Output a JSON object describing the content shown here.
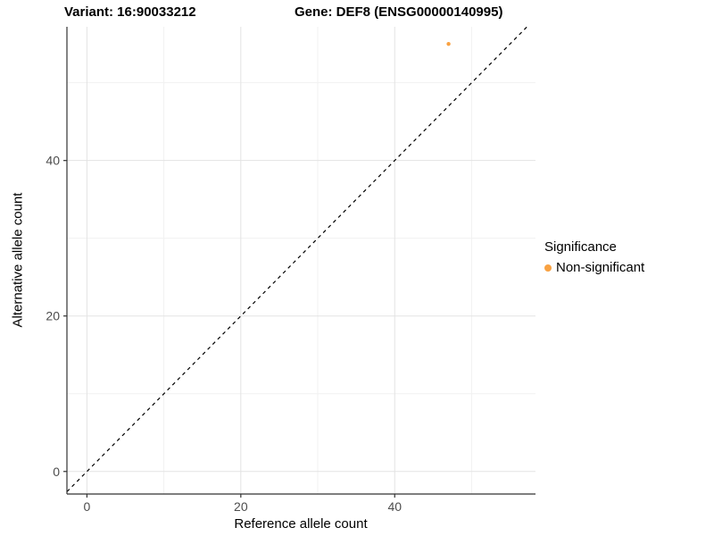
{
  "header": {
    "variant_title": "Variant: 16:90033212",
    "gene_title": "Gene: DEF8 (ENSG00000140995)"
  },
  "chart_data": {
    "type": "scatter",
    "xlabel": "Reference allele count",
    "ylabel": "Alternative allele count",
    "x_ticks": [
      0,
      20,
      40
    ],
    "y_ticks": [
      0,
      20,
      40
    ],
    "x_minor_ticks": [
      10,
      30,
      50
    ],
    "y_minor_ticks": [
      10,
      30,
      50
    ],
    "xlim": [
      -2.6,
      58.3
    ],
    "ylim": [
      -2.9,
      57.2
    ],
    "grid": true,
    "points": [
      {
        "x": 47,
        "y": 55,
        "series": "Non-significant"
      }
    ],
    "reference_line": {
      "slope": 1,
      "intercept": 0,
      "style": "dashed"
    },
    "legend": {
      "position": "right",
      "title": "Significance",
      "items": [
        {
          "label": "Non-significant",
          "color": "#F9A242"
        }
      ]
    }
  },
  "colors": {
    "point": "#F9A242",
    "grid_major": "#e3e3e3",
    "grid_minor": "#f1f1f1",
    "axis_line": "#333333",
    "tick_label": "#4d4d4d",
    "reference_line": "#000000",
    "background": "#ffffff"
  }
}
